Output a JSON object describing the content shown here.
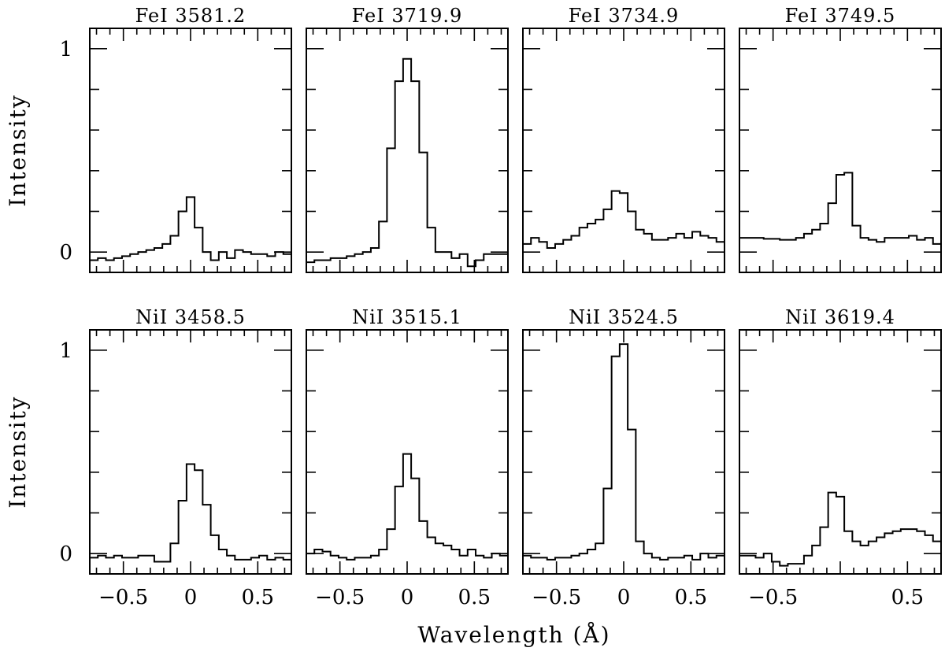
{
  "figure": {
    "ylabel": "Intensity",
    "xlabel": "Wavelength (Å)"
  },
  "chart_data": [
    {
      "type": "line",
      "title": "FeI  3581.2",
      "xlabel": "",
      "ylabel": "Intensity",
      "xlim": [
        -0.75,
        0.75
      ],
      "ylim": [
        -0.1,
        1.1
      ],
      "xticklabels": [],
      "yticklabels": [
        "0",
        "1"
      ],
      "step": true,
      "x": [
        -0.72,
        -0.66,
        -0.6,
        -0.54,
        -0.48,
        -0.42,
        -0.36,
        -0.3,
        -0.24,
        -0.18,
        -0.12,
        -0.06,
        0.0,
        0.06,
        0.12,
        0.18,
        0.24,
        0.3,
        0.36,
        0.42,
        0.48,
        0.54,
        0.6,
        0.66,
        0.72
      ],
      "series": [
        {
          "values": [
            -0.04,
            -0.03,
            -0.04,
            -0.03,
            -0.02,
            -0.01,
            0.0,
            0.01,
            0.02,
            0.04,
            0.08,
            0.2,
            0.27,
            0.12,
            0.0,
            -0.04,
            0.0,
            -0.03,
            0.01,
            0.0,
            -0.01,
            -0.01,
            -0.02,
            0.0,
            -0.01
          ]
        }
      ]
    },
    {
      "type": "line",
      "title": "FeI  3719.9",
      "xlabel": "",
      "ylabel": "",
      "xlim": [
        -0.75,
        0.75
      ],
      "ylim": [
        -0.1,
        1.1
      ],
      "xticklabels": [],
      "yticklabels": [],
      "step": true,
      "x": [
        -0.72,
        -0.66,
        -0.6,
        -0.54,
        -0.48,
        -0.42,
        -0.36,
        -0.3,
        -0.24,
        -0.18,
        -0.12,
        -0.06,
        0.0,
        0.06,
        0.12,
        0.18,
        0.24,
        0.3,
        0.36,
        0.42,
        0.48,
        0.54,
        0.6,
        0.66,
        0.72
      ],
      "series": [
        {
          "values": [
            -0.05,
            -0.04,
            -0.04,
            -0.03,
            -0.03,
            -0.02,
            -0.01,
            0.0,
            0.02,
            0.15,
            0.51,
            0.84,
            0.95,
            0.84,
            0.49,
            0.12,
            0.0,
            0.0,
            -0.03,
            -0.01,
            -0.07,
            -0.04,
            -0.01,
            -0.01,
            -0.01
          ]
        }
      ]
    },
    {
      "type": "line",
      "title": "FeI  3734.9",
      "xlabel": "",
      "ylabel": "",
      "xlim": [
        -0.75,
        0.75
      ],
      "ylim": [
        -0.1,
        1.1
      ],
      "xticklabels": [],
      "yticklabels": [],
      "step": true,
      "x": [
        -0.72,
        -0.66,
        -0.6,
        -0.54,
        -0.48,
        -0.42,
        -0.36,
        -0.3,
        -0.24,
        -0.18,
        -0.12,
        -0.06,
        0.0,
        0.06,
        0.12,
        0.18,
        0.24,
        0.3,
        0.36,
        0.42,
        0.48,
        0.54,
        0.6,
        0.66,
        0.72
      ],
      "series": [
        {
          "values": [
            0.04,
            0.07,
            0.05,
            0.02,
            0.04,
            0.06,
            0.08,
            0.12,
            0.14,
            0.16,
            0.21,
            0.3,
            0.29,
            0.2,
            0.11,
            0.09,
            0.06,
            0.06,
            0.07,
            0.09,
            0.07,
            0.1,
            0.08,
            0.07,
            0.05
          ]
        }
      ]
    },
    {
      "type": "line",
      "title": "FeI  3749.5",
      "xlabel": "",
      "ylabel": "",
      "xlim": [
        -0.75,
        0.75
      ],
      "ylim": [
        -0.1,
        1.1
      ],
      "xticklabels": [],
      "yticklabels": [],
      "step": true,
      "x": [
        -0.72,
        -0.66,
        -0.6,
        -0.54,
        -0.48,
        -0.42,
        -0.36,
        -0.3,
        -0.24,
        -0.18,
        -0.12,
        -0.06,
        0.0,
        0.06,
        0.12,
        0.18,
        0.24,
        0.3,
        0.36,
        0.42,
        0.48,
        0.54,
        0.6,
        0.66,
        0.72
      ],
      "series": [
        {
          "values": [
            0.07,
            0.07,
            0.07,
            0.065,
            0.065,
            0.06,
            0.06,
            0.07,
            0.09,
            0.11,
            0.14,
            0.24,
            0.38,
            0.39,
            0.13,
            0.07,
            0.06,
            0.05,
            0.07,
            0.07,
            0.07,
            0.08,
            0.06,
            0.07,
            0.04
          ]
        }
      ]
    },
    {
      "type": "line",
      "title": "NiI  3458.5",
      "xlabel": "",
      "ylabel": "Intensity",
      "xlim": [
        -0.75,
        0.75
      ],
      "ylim": [
        -0.1,
        1.1
      ],
      "xticklabels": [
        "−0.5",
        "0",
        "0.5"
      ],
      "yticklabels": [
        "0",
        "1"
      ],
      "step": true,
      "x": [
        -0.72,
        -0.66,
        -0.6,
        -0.54,
        -0.48,
        -0.42,
        -0.36,
        -0.3,
        -0.24,
        -0.18,
        -0.12,
        -0.06,
        0.0,
        0.06,
        0.12,
        0.18,
        0.24,
        0.3,
        0.36,
        0.42,
        0.48,
        0.54,
        0.6,
        0.66,
        0.72
      ],
      "series": [
        {
          "values": [
            -0.02,
            -0.01,
            -0.02,
            -0.01,
            -0.02,
            -0.02,
            -0.01,
            -0.01,
            -0.04,
            -0.04,
            0.05,
            0.26,
            0.44,
            0.41,
            0.24,
            0.09,
            0.02,
            -0.01,
            -0.03,
            -0.03,
            -0.02,
            -0.01,
            -0.03,
            -0.02,
            -0.03
          ]
        }
      ]
    },
    {
      "type": "line",
      "title": "NiI  3515.1",
      "xlabel": "",
      "ylabel": "",
      "xlim": [
        -0.75,
        0.75
      ],
      "ylim": [
        -0.1,
        1.1
      ],
      "xticklabels": [
        "−0.5",
        "0",
        "0.5"
      ],
      "yticklabels": [],
      "step": true,
      "x": [
        -0.72,
        -0.66,
        -0.6,
        -0.54,
        -0.48,
        -0.42,
        -0.36,
        -0.3,
        -0.24,
        -0.18,
        -0.12,
        -0.06,
        0.0,
        0.06,
        0.12,
        0.18,
        0.24,
        0.3,
        0.36,
        0.42,
        0.48,
        0.54,
        0.6,
        0.66,
        0.72
      ],
      "series": [
        {
          "values": [
            0.0,
            0.02,
            0.01,
            -0.01,
            -0.02,
            -0.03,
            -0.02,
            -0.02,
            -0.01,
            0.02,
            0.12,
            0.33,
            0.49,
            0.37,
            0.16,
            0.08,
            0.05,
            0.04,
            0.02,
            -0.01,
            0.02,
            -0.01,
            -0.02,
            0.0,
            -0.01
          ]
        }
      ]
    },
    {
      "type": "line",
      "title": "NiI  3524.5",
      "xlabel": "",
      "ylabel": "",
      "xlim": [
        -0.75,
        0.75
      ],
      "ylim": [
        -0.1,
        1.1
      ],
      "xticklabels": [
        "−0.5",
        "0",
        "0.5"
      ],
      "yticklabels": [],
      "step": true,
      "x": [
        -0.72,
        -0.66,
        -0.6,
        -0.54,
        -0.48,
        -0.42,
        -0.36,
        -0.3,
        -0.24,
        -0.18,
        -0.12,
        -0.06,
        0.0,
        0.06,
        0.12,
        0.18,
        0.24,
        0.3,
        0.36,
        0.42,
        0.48,
        0.54,
        0.6,
        0.66,
        0.72
      ],
      "series": [
        {
          "values": [
            -0.01,
            -0.02,
            -0.02,
            -0.03,
            -0.02,
            -0.02,
            -0.01,
            0.0,
            0.02,
            0.05,
            0.32,
            0.97,
            1.03,
            0.61,
            0.06,
            0.0,
            -0.02,
            -0.03,
            -0.02,
            -0.02,
            -0.01,
            -0.03,
            0.0,
            -0.02,
            -0.01
          ]
        }
      ]
    },
    {
      "type": "line",
      "title": "NiI  3619.4",
      "xlabel": "",
      "ylabel": "",
      "xlim": [
        -0.75,
        0.75
      ],
      "ylim": [
        -0.1,
        1.1
      ],
      "xticklabels": [
        "−0.5",
        "0.5"
      ],
      "yticklabels": [],
      "step": true,
      "x": [
        -0.72,
        -0.66,
        -0.6,
        -0.54,
        -0.48,
        -0.42,
        -0.36,
        -0.3,
        -0.24,
        -0.18,
        -0.12,
        -0.06,
        0.0,
        0.06,
        0.12,
        0.18,
        0.24,
        0.3,
        0.36,
        0.42,
        0.48,
        0.54,
        0.6,
        0.66,
        0.72
      ],
      "series": [
        {
          "values": [
            -0.01,
            -0.01,
            -0.02,
            0.0,
            -0.04,
            -0.06,
            -0.05,
            -0.05,
            -0.01,
            0.04,
            0.13,
            0.3,
            0.28,
            0.11,
            0.06,
            0.04,
            0.06,
            0.08,
            0.1,
            0.11,
            0.12,
            0.12,
            0.11,
            0.09,
            0.06
          ]
        }
      ]
    }
  ]
}
